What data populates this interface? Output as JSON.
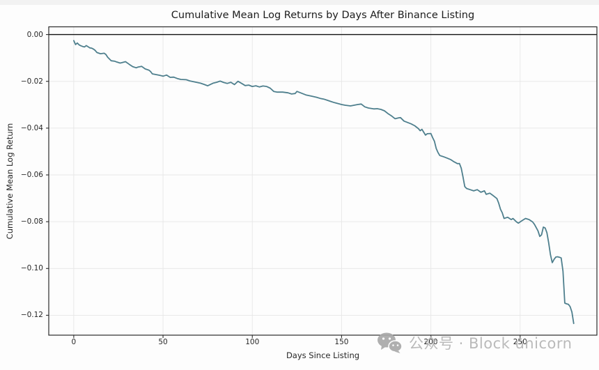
{
  "chart": {
    "title": "Cumulative Mean Log Returns by Days After Binance Listing",
    "xlabel": "Days Since Listing",
    "ylabel": "Cumulative Mean Log Return"
  },
  "watermark": {
    "icon": "wechat-icon",
    "text": "公众号 · Block unicorn"
  },
  "colors": {
    "line": "#4e7f8d",
    "grid": "#e8e8e8",
    "spine": "#2b2b2b",
    "zero_line": "#111111",
    "text": "#262626",
    "watermark": "#b5b5b5",
    "background": "#ffffff"
  },
  "chart_data": {
    "type": "line",
    "title": "Cumulative Mean Log Returns by Days After Binance Listing",
    "xlabel": "Days Since Listing",
    "ylabel": "Cumulative Mean Log Return",
    "xlim": [
      -14,
      293
    ],
    "ylim": [
      -0.1285,
      0.0033
    ],
    "xticks": [
      0,
      50,
      100,
      150,
      200,
      250
    ],
    "yticks": [
      0.0,
      -0.02,
      -0.04,
      -0.06,
      -0.08,
      -0.1,
      -0.12
    ],
    "ytick_labels": [
      "0.00",
      "−0.02",
      "−0.04",
      "−0.06",
      "−0.08",
      "−0.10",
      "−0.12"
    ],
    "grid": true,
    "legend": false,
    "zero_line": 0.0,
    "series": [
      {
        "name": "cumulative_mean_log_return",
        "points": [
          [
            0,
            -0.0026
          ],
          [
            1,
            -0.0043
          ],
          [
            2,
            -0.0036
          ],
          [
            3,
            -0.0044
          ],
          [
            4,
            -0.0048
          ],
          [
            5,
            -0.0051
          ],
          [
            6,
            -0.0053
          ],
          [
            7,
            -0.0047
          ],
          [
            8,
            -0.0052
          ],
          [
            9,
            -0.0057
          ],
          [
            10,
            -0.0058
          ],
          [
            11,
            -0.0062
          ],
          [
            12,
            -0.0068
          ],
          [
            13,
            -0.0077
          ],
          [
            15,
            -0.0082
          ],
          [
            17,
            -0.008
          ],
          [
            18,
            -0.0085
          ],
          [
            19,
            -0.0097
          ],
          [
            21,
            -0.0112
          ],
          [
            23,
            -0.0114
          ],
          [
            24,
            -0.0117
          ],
          [
            26,
            -0.0122
          ],
          [
            27,
            -0.012
          ],
          [
            29,
            -0.0116
          ],
          [
            31,
            -0.0127
          ],
          [
            33,
            -0.0137
          ],
          [
            35,
            -0.0142
          ],
          [
            36,
            -0.0139
          ],
          [
            38,
            -0.0136
          ],
          [
            40,
            -0.0147
          ],
          [
            42,
            -0.0152
          ],
          [
            43,
            -0.0158
          ],
          [
            44,
            -0.0168
          ],
          [
            46,
            -0.0171
          ],
          [
            48,
            -0.0174
          ],
          [
            50,
            -0.0178
          ],
          [
            52,
            -0.0173
          ],
          [
            54,
            -0.0183
          ],
          [
            56,
            -0.0182
          ],
          [
            58,
            -0.0188
          ],
          [
            60,
            -0.0192
          ],
          [
            63,
            -0.0193
          ],
          [
            65,
            -0.0198
          ],
          [
            68,
            -0.0203
          ],
          [
            71,
            -0.0208
          ],
          [
            73,
            -0.0213
          ],
          [
            75,
            -0.0219
          ],
          [
            78,
            -0.0208
          ],
          [
            80,
            -0.0204
          ],
          [
            82,
            -0.0199
          ],
          [
            84,
            -0.0205
          ],
          [
            86,
            -0.0209
          ],
          [
            88,
            -0.0204
          ],
          [
            90,
            -0.0214
          ],
          [
            92,
            -0.02
          ],
          [
            94,
            -0.0209
          ],
          [
            96,
            -0.0218
          ],
          [
            98,
            -0.0216
          ],
          [
            100,
            -0.0222
          ],
          [
            102,
            -0.0219
          ],
          [
            104,
            -0.0224
          ],
          [
            106,
            -0.022
          ],
          [
            108,
            -0.0222
          ],
          [
            110,
            -0.0229
          ],
          [
            112,
            -0.0243
          ],
          [
            114,
            -0.0246
          ],
          [
            117,
            -0.0246
          ],
          [
            120,
            -0.0249
          ],
          [
            122,
            -0.0254
          ],
          [
            124,
            -0.0252
          ],
          [
            125,
            -0.0243
          ],
          [
            127,
            -0.0249
          ],
          [
            130,
            -0.0258
          ],
          [
            133,
            -0.0263
          ],
          [
            136,
            -0.0268
          ],
          [
            138,
            -0.0273
          ],
          [
            140,
            -0.0276
          ],
          [
            142,
            -0.0281
          ],
          [
            144,
            -0.0286
          ],
          [
            146,
            -0.0291
          ],
          [
            148,
            -0.0295
          ],
          [
            150,
            -0.0299
          ],
          [
            152,
            -0.0302
          ],
          [
            155,
            -0.0305
          ],
          [
            157,
            -0.0302
          ],
          [
            159,
            -0.0299
          ],
          [
            161,
            -0.0297
          ],
          [
            163,
            -0.0309
          ],
          [
            165,
            -0.0314
          ],
          [
            168,
            -0.0318
          ],
          [
            170,
            -0.0317
          ],
          [
            172,
            -0.032
          ],
          [
            174,
            -0.0326
          ],
          [
            176,
            -0.0338
          ],
          [
            178,
            -0.0348
          ],
          [
            180,
            -0.036
          ],
          [
            182,
            -0.0356
          ],
          [
            183,
            -0.0355
          ],
          [
            185,
            -0.037
          ],
          [
            187,
            -0.0376
          ],
          [
            189,
            -0.0382
          ],
          [
            191,
            -0.039
          ],
          [
            193,
            -0.0402
          ],
          [
            194,
            -0.0411
          ],
          [
            195,
            -0.0405
          ],
          [
            197,
            -0.043
          ],
          [
            198,
            -0.0424
          ],
          [
            200,
            -0.0423
          ],
          [
            201,
            -0.0441
          ],
          [
            202,
            -0.0456
          ],
          [
            203,
            -0.0487
          ],
          [
            204,
            -0.0504
          ],
          [
            205,
            -0.0517
          ],
          [
            207,
            -0.0522
          ],
          [
            209,
            -0.0528
          ],
          [
            211,
            -0.0534
          ],
          [
            213,
            -0.0544
          ],
          [
            215,
            -0.0552
          ],
          [
            216,
            -0.0551
          ],
          [
            217,
            -0.0571
          ],
          [
            218,
            -0.0608
          ],
          [
            219,
            -0.065
          ],
          [
            220,
            -0.0658
          ],
          [
            222,
            -0.0663
          ],
          [
            224,
            -0.0668
          ],
          [
            226,
            -0.0663
          ],
          [
            228,
            -0.0674
          ],
          [
            230,
            -0.0668
          ],
          [
            231,
            -0.0683
          ],
          [
            233,
            -0.0678
          ],
          [
            235,
            -0.0689
          ],
          [
            237,
            -0.0701
          ],
          [
            238,
            -0.0721
          ],
          [
            239,
            -0.0747
          ],
          [
            240,
            -0.0762
          ],
          [
            241,
            -0.0786
          ],
          [
            243,
            -0.0781
          ],
          [
            245,
            -0.0791
          ],
          [
            246,
            -0.0786
          ],
          [
            248,
            -0.0801
          ],
          [
            249,
            -0.0806
          ],
          [
            251,
            -0.0796
          ],
          [
            253,
            -0.0786
          ],
          [
            255,
            -0.0791
          ],
          [
            257,
            -0.0801
          ],
          [
            258,
            -0.0811
          ],
          [
            260,
            -0.0839
          ],
          [
            261,
            -0.0863
          ],
          [
            262,
            -0.0856
          ],
          [
            263,
            -0.0823
          ],
          [
            264,
            -0.0827
          ],
          [
            265,
            -0.0847
          ],
          [
            266,
            -0.0891
          ],
          [
            267,
            -0.0941
          ],
          [
            268,
            -0.0975
          ],
          [
            269,
            -0.0961
          ],
          [
            270,
            -0.0951
          ],
          [
            271,
            -0.095
          ],
          [
            272,
            -0.0952
          ],
          [
            273,
            -0.0955
          ],
          [
            274,
            -0.1012
          ],
          [
            275,
            -0.1148
          ],
          [
            276,
            -0.1151
          ],
          [
            277,
            -0.1153
          ],
          [
            278,
            -0.1163
          ],
          [
            279,
            -0.1186
          ],
          [
            280,
            -0.1235
          ]
        ]
      }
    ]
  }
}
